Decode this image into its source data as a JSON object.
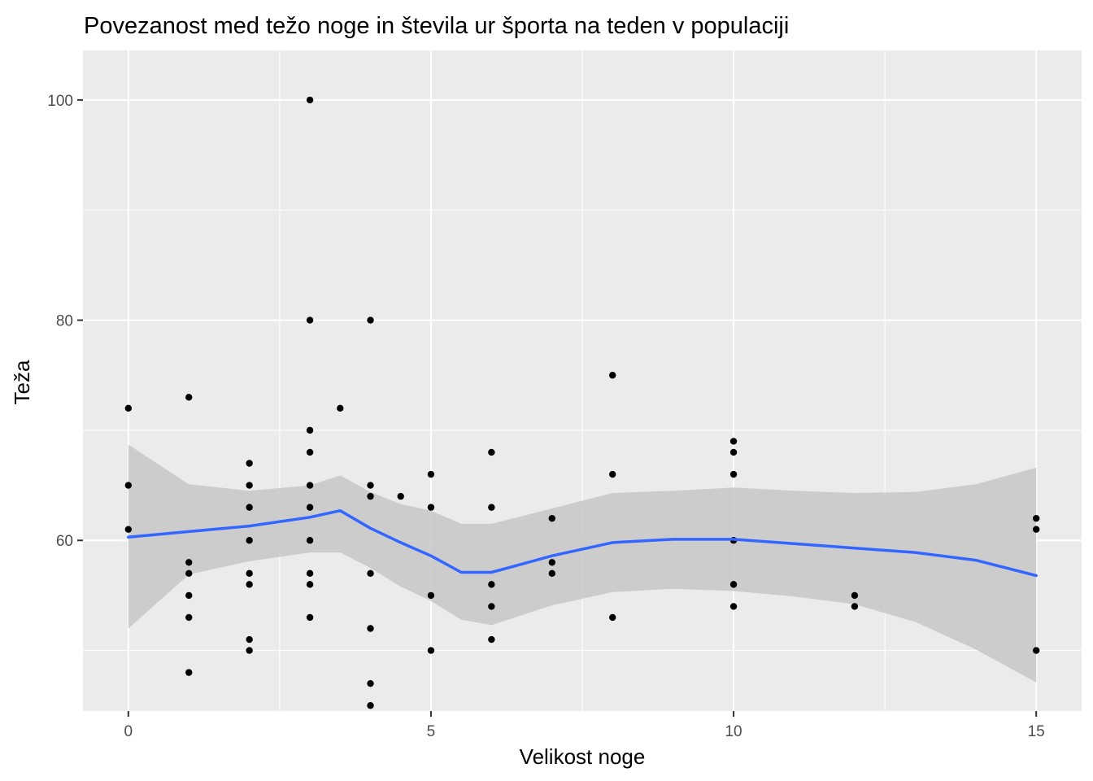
{
  "chart_data": {
    "type": "scatter",
    "title": "Povezanost med težo noge in števila ur športa na teden v populaciji",
    "xlabel": "Velikost noge",
    "ylabel": "Teža",
    "xlim": [
      -0.75,
      15.75
    ],
    "ylim": [
      44.5,
      104.5
    ],
    "x_ticks": [
      0,
      5,
      10,
      15
    ],
    "y_ticks": [
      60,
      80,
      100
    ],
    "x_minor": [
      2.5,
      7.5,
      12.5
    ],
    "y_minor": [
      50,
      70,
      90
    ],
    "grid": true,
    "panel_color": "#ebebeb",
    "point_color": "#000000",
    "smooth_color": "#3366ff",
    "band_color": "#c7c7c7",
    "points": [
      {
        "x": 0,
        "y": 72
      },
      {
        "x": 0,
        "y": 65
      },
      {
        "x": 0,
        "y": 61
      },
      {
        "x": 1,
        "y": 73
      },
      {
        "x": 1,
        "y": 58
      },
      {
        "x": 1,
        "y": 57
      },
      {
        "x": 1,
        "y": 55
      },
      {
        "x": 1,
        "y": 53
      },
      {
        "x": 1,
        "y": 48
      },
      {
        "x": 2,
        "y": 67
      },
      {
        "x": 2,
        "y": 65
      },
      {
        "x": 2,
        "y": 63
      },
      {
        "x": 2,
        "y": 60
      },
      {
        "x": 2,
        "y": 57
      },
      {
        "x": 2,
        "y": 56
      },
      {
        "x": 2,
        "y": 51
      },
      {
        "x": 2,
        "y": 50
      },
      {
        "x": 3,
        "y": 100
      },
      {
        "x": 3,
        "y": 80
      },
      {
        "x": 3,
        "y": 70
      },
      {
        "x": 3,
        "y": 68
      },
      {
        "x": 3,
        "y": 65
      },
      {
        "x": 3,
        "y": 63
      },
      {
        "x": 3,
        "y": 60
      },
      {
        "x": 3,
        "y": 57
      },
      {
        "x": 3,
        "y": 56
      },
      {
        "x": 3,
        "y": 53
      },
      {
        "x": 3.5,
        "y": 72
      },
      {
        "x": 4,
        "y": 80
      },
      {
        "x": 4,
        "y": 65
      },
      {
        "x": 4,
        "y": 64
      },
      {
        "x": 4,
        "y": 57
      },
      {
        "x": 4,
        "y": 52
      },
      {
        "x": 4,
        "y": 47
      },
      {
        "x": 4,
        "y": 45
      },
      {
        "x": 4.5,
        "y": 64
      },
      {
        "x": 5,
        "y": 66
      },
      {
        "x": 5,
        "y": 63
      },
      {
        "x": 5,
        "y": 55
      },
      {
        "x": 5,
        "y": 50
      },
      {
        "x": 6,
        "y": 68
      },
      {
        "x": 6,
        "y": 63
      },
      {
        "x": 6,
        "y": 56
      },
      {
        "x": 6,
        "y": 54
      },
      {
        "x": 6,
        "y": 51
      },
      {
        "x": 7,
        "y": 62
      },
      {
        "x": 7,
        "y": 58
      },
      {
        "x": 7,
        "y": 57
      },
      {
        "x": 8,
        "y": 75
      },
      {
        "x": 8,
        "y": 66
      },
      {
        "x": 8,
        "y": 53
      },
      {
        "x": 10,
        "y": 69
      },
      {
        "x": 10,
        "y": 68
      },
      {
        "x": 10,
        "y": 66
      },
      {
        "x": 10,
        "y": 60
      },
      {
        "x": 10,
        "y": 56
      },
      {
        "x": 10,
        "y": 54
      },
      {
        "x": 12,
        "y": 55
      },
      {
        "x": 12,
        "y": 54
      },
      {
        "x": 15,
        "y": 62
      },
      {
        "x": 15,
        "y": 61
      },
      {
        "x": 15,
        "y": 50
      }
    ],
    "smooth": {
      "x": [
        0,
        1,
        2,
        3,
        3.5,
        4,
        4.5,
        5,
        5.5,
        6,
        7,
        8,
        9,
        10,
        11,
        12,
        13,
        14,
        15
      ],
      "y": [
        60.3,
        60.8,
        61.3,
        62.1,
        62.7,
        61.1,
        59.8,
        58.6,
        57.1,
        57.1,
        58.6,
        59.8,
        60.1,
        60.1,
        59.7,
        59.3,
        58.9,
        58.2,
        56.8
      ],
      "lower": [
        52.0,
        56.9,
        58.1,
        58.9,
        58.9,
        57.5,
        55.8,
        54.5,
        52.8,
        52.3,
        54.1,
        55.3,
        55.6,
        55.4,
        54.9,
        54.2,
        52.6,
        50.1,
        47.1
      ],
      "upper": [
        68.7,
        65.1,
        64.5,
        65.0,
        65.9,
        64.4,
        63.3,
        62.7,
        61.5,
        61.5,
        62.9,
        64.3,
        64.5,
        64.8,
        64.5,
        64.3,
        64.4,
        65.1,
        66.6
      ]
    }
  }
}
